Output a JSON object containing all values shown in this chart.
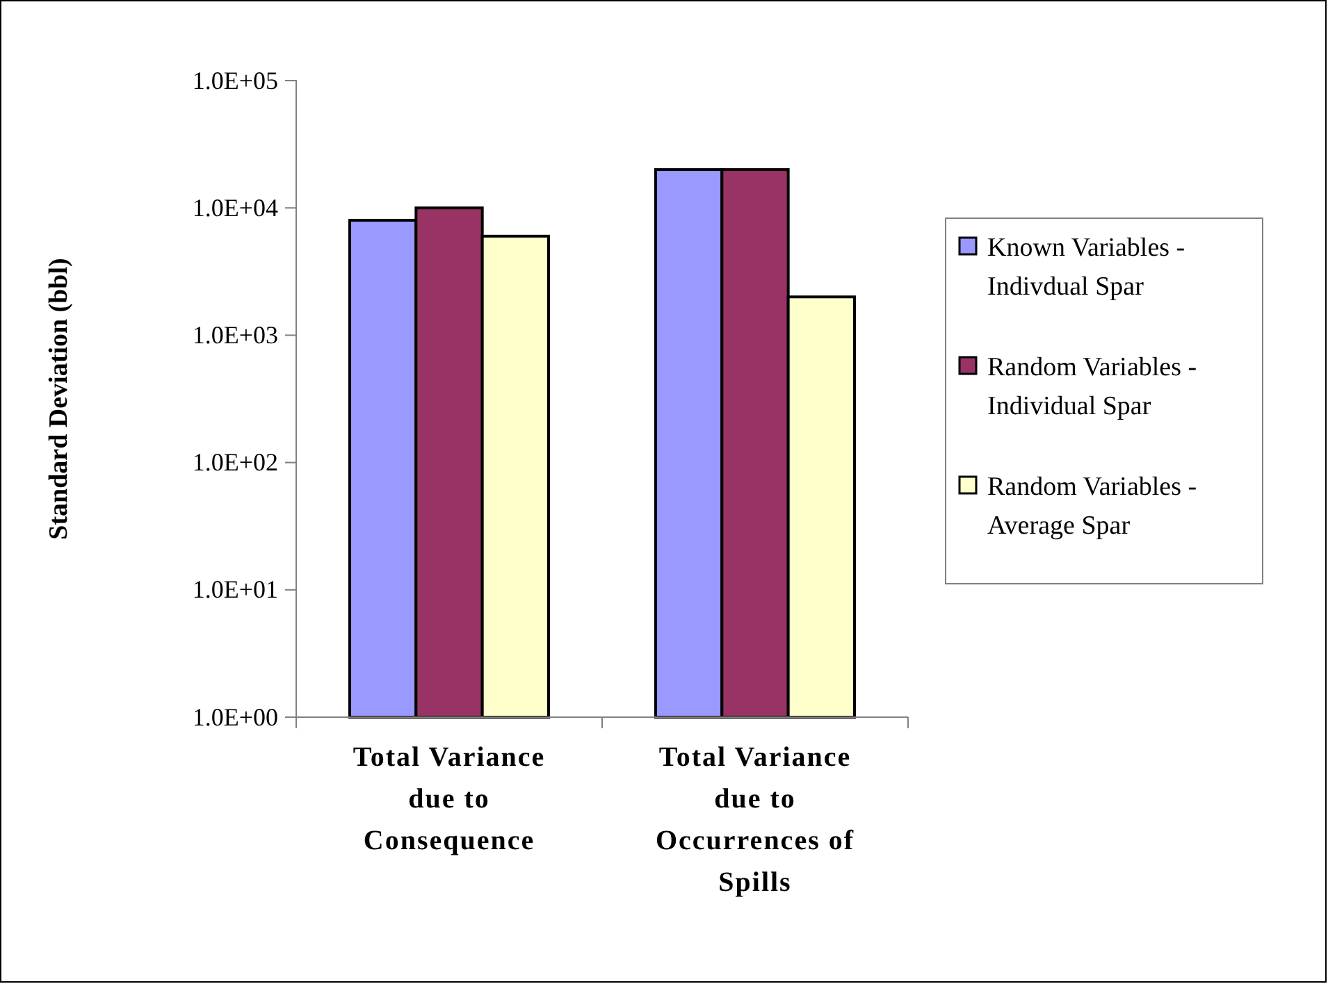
{
  "chart_data": {
    "type": "bar",
    "ylabel": "Standard Deviation (bbl)",
    "categories": [
      "Total Variance due to Consequence",
      "Total Variance due to Occurrences of Spills"
    ],
    "series": [
      {
        "name": "Known Variables - Indivdual Spar",
        "color": "#9999ff",
        "values": [
          8000,
          20000
        ]
      },
      {
        "name": "Random Variables - Individual Spar",
        "color": "#993366",
        "values": [
          10000,
          20000
        ]
      },
      {
        "name": "Random Variables - Average Spar",
        "color": "#ffffcc",
        "values": [
          6000,
          2000
        ]
      }
    ],
    "log": true,
    "ylim": [
      1,
      100000
    ],
    "yticks": [
      {
        "value": 1,
        "label": "1.0E+00"
      },
      {
        "value": 10,
        "label": "1.0E+01"
      },
      {
        "value": 100,
        "label": "1.0E+02"
      },
      {
        "value": 1000,
        "label": "1.0E+03"
      },
      {
        "value": 10000,
        "label": "1.0E+04"
      },
      {
        "value": 100000,
        "label": "1.0E+05"
      }
    ],
    "legend": "right",
    "grid": false
  }
}
